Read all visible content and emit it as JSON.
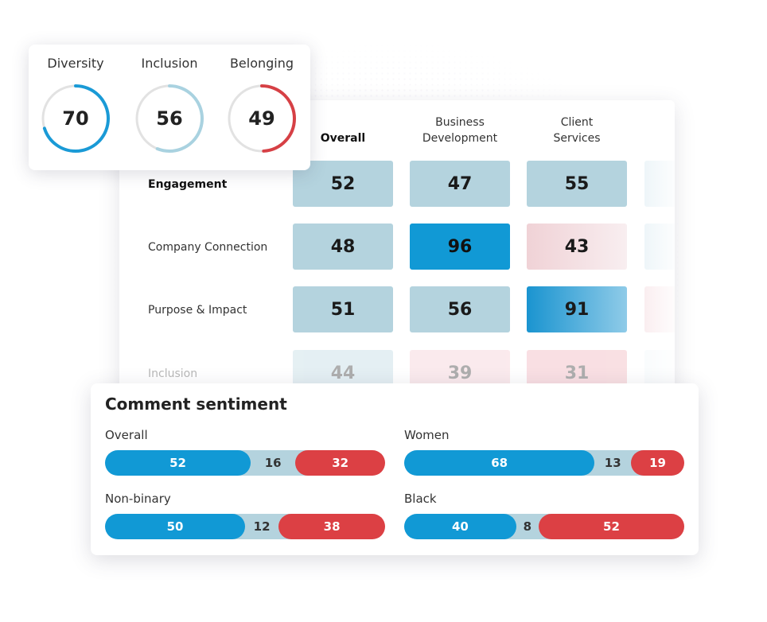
{
  "dib": [
    {
      "label": "Diversity",
      "value": 70,
      "color": "#1a9ad6",
      "track": "#e2e2e2"
    },
    {
      "label": "Inclusion",
      "value": 56,
      "color": "#a9d2e0",
      "track": "#e2e2e2"
    },
    {
      "label": "Belonging",
      "value": 49,
      "color": "#d64045",
      "track": "#e2e2e2"
    }
  ],
  "heatmap": {
    "columns": [
      "Overall",
      "Business\nDevelopment",
      "Client\nServices"
    ],
    "rows": [
      {
        "label": "Engagement",
        "values": [
          52,
          47,
          55
        ]
      },
      {
        "label": "Company Connection",
        "values": [
          48,
          96,
          43
        ]
      },
      {
        "label": "Purpose & Impact",
        "values": [
          51,
          56,
          91
        ]
      },
      {
        "label": "Inclusion",
        "values": [
          44,
          39,
          31
        ]
      }
    ]
  },
  "sentiment": {
    "title": "Comment sentiment",
    "groups": [
      {
        "label": "Overall",
        "positive": 52,
        "neutral": 16,
        "negative": 32
      },
      {
        "label": "Women",
        "positive": 68,
        "neutral": 13,
        "negative": 19
      },
      {
        "label": "Non-binary",
        "positive": 50,
        "neutral": 12,
        "negative": 38
      },
      {
        "label": "Black",
        "positive": 40,
        "neutral": 8,
        "negative": 52
      }
    ]
  },
  "colors": {
    "positive": "#1199d5",
    "neutral": "#b4d3de",
    "negative": "#dc4044"
  }
}
